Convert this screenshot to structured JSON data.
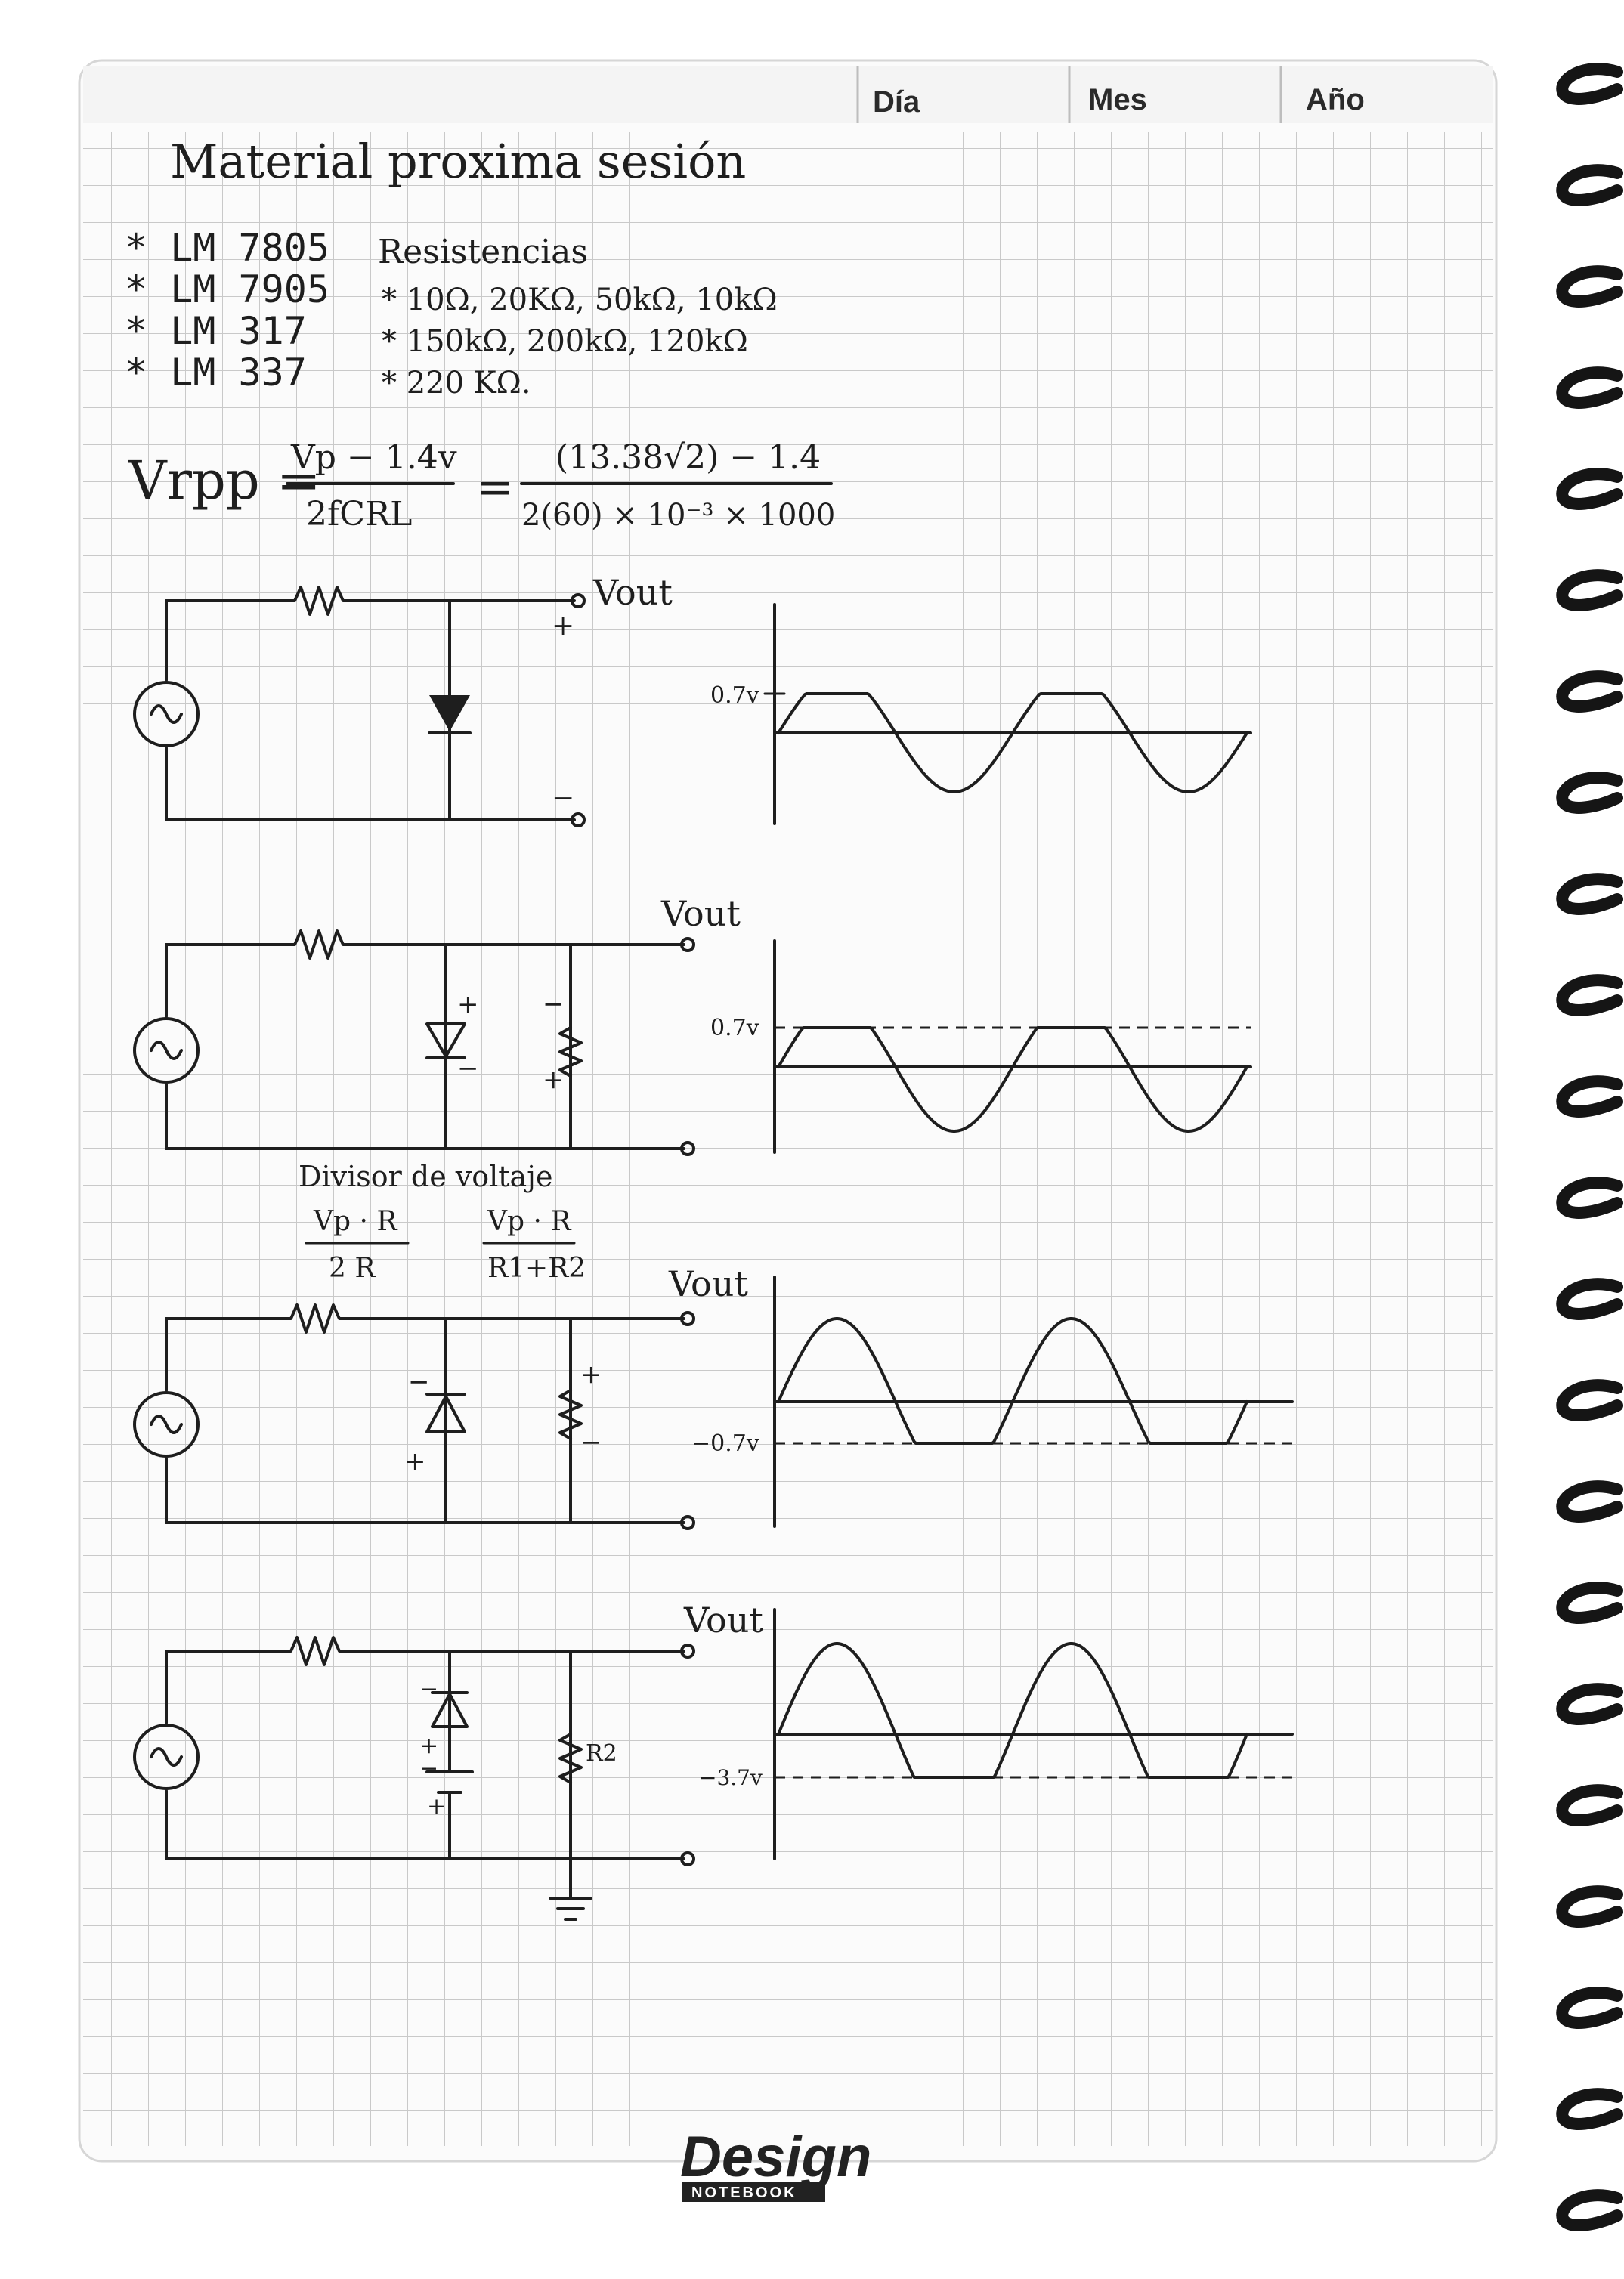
{
  "header": {
    "day_label": "Día",
    "month_label": "Mes",
    "year_label": "Año"
  },
  "notes": {
    "title": "Material proxima sesión",
    "regulators": [
      "* LM 7805",
      "* LM 7905",
      "* LM 317",
      "* LM 337"
    ],
    "resistors_title": "Resistencias",
    "resistor_lines": [
      "* 10Ω, 20KΩ, 50kΩ, 10kΩ",
      "* 150kΩ, 200kΩ, 120kΩ",
      "* 220 KΩ."
    ]
  },
  "formula": {
    "lhs": "Vrpp =",
    "numerator_1": "Vp − 1.4v",
    "denominator_1": "2fCRL",
    "equals": "=",
    "numerator_2": "(13.38√2) − 1.4",
    "denominator_2": "2(60) × 10⁻³ × 1000"
  },
  "circuits": [
    {
      "out_label": "Vout",
      "plus_label": "+",
      "minus_label": "−",
      "level_label": "0.7v"
    },
    {
      "out_label": "Vout",
      "plus_label": "+",
      "minus_label": "−",
      "level_label": "0.7v",
      "divider_title": "Divisor de voltaje",
      "divider_num_1": "Vp · R",
      "divider_den_1": "2 R",
      "divider_num_2": "Vp · R",
      "divider_den_2": "R1+R2"
    },
    {
      "out_label": "Vout",
      "plus_label": "+",
      "minus_label": "−",
      "level_label": "−0.7v"
    },
    {
      "out_label": "Vout",
      "plus_label": "+",
      "minus_label": "−",
      "level_label": "−3.7v",
      "resistor_label": "R2"
    }
  ],
  "brand": {
    "name": "Design",
    "sub": "NOTEBOOK"
  },
  "colors": {
    "ink": "#1e1e1e",
    "grid": "#c9c9c9",
    "paper": "#fbfbfb"
  }
}
